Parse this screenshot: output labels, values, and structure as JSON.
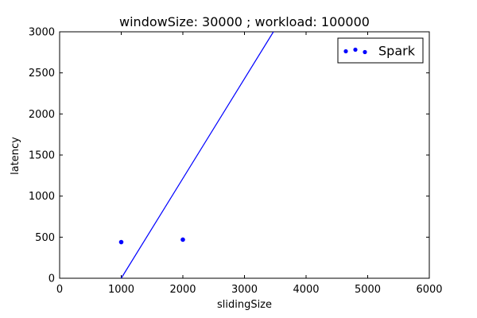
{
  "chart_data": {
    "type": "scatter",
    "title": "windowSize: 30000 ; workload: 100000",
    "xlabel": "slidingSize",
    "ylabel": "latency",
    "xlim": [
      0,
      6000
    ],
    "ylim": [
      0,
      3000
    ],
    "xticks": [
      0,
      1000,
      2000,
      3000,
      4000,
      5000,
      6000
    ],
    "yticks": [
      0,
      500,
      1000,
      1500,
      2000,
      2500,
      3000
    ],
    "xtick_labels": [
      "0",
      "1000",
      "2000",
      "3000",
      "4000",
      "5000",
      "6000"
    ],
    "ytick_labels": [
      "0",
      "500",
      "1000",
      "1500",
      "2000",
      "2500",
      "3000"
    ],
    "grid": false,
    "legend_position": "top-right",
    "series": [
      {
        "name": "Spark",
        "kind": "scatter",
        "color": "#0000ff",
        "x": [
          1000,
          2000
        ],
        "y": [
          440,
          470
        ]
      },
      {
        "kind": "line",
        "color": "#0000ff",
        "x": [
          1000,
          3470
        ],
        "y": [
          0,
          3000
        ]
      }
    ]
  }
}
